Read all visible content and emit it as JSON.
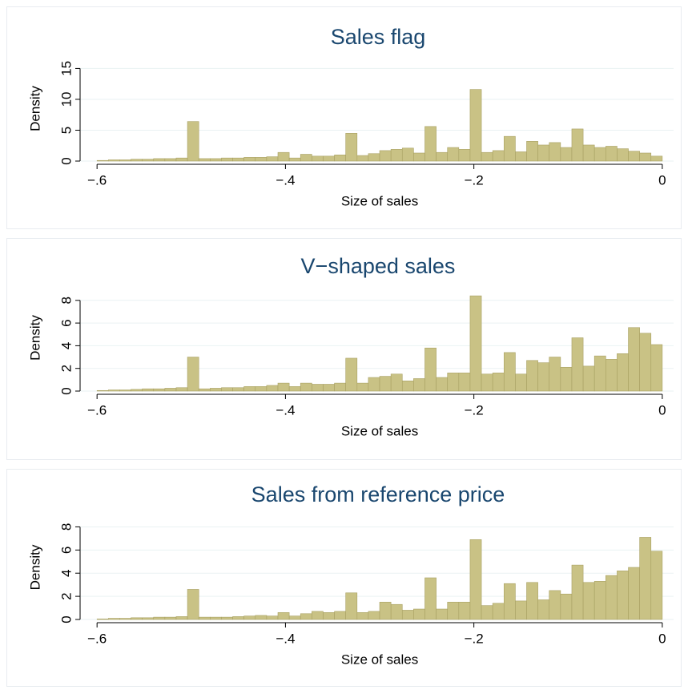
{
  "chart_data": [
    {
      "type": "histogram",
      "title": "Sales flag",
      "ylabel": "Density",
      "xlabel": "Size of sales",
      "bins": [
        -0.6,
        -0.588,
        -0.576,
        -0.564,
        -0.552,
        -0.54,
        -0.528,
        -0.516,
        -0.504,
        -0.492,
        -0.48,
        -0.468,
        -0.456,
        -0.444,
        -0.432,
        -0.42,
        -0.408,
        -0.396,
        -0.384,
        -0.372,
        -0.36,
        -0.348,
        -0.336,
        -0.324,
        -0.312,
        -0.3,
        -0.288,
        -0.276,
        -0.264,
        -0.252,
        -0.24,
        -0.228,
        -0.216,
        -0.204,
        -0.192,
        -0.18,
        -0.168,
        -0.156,
        -0.144,
        -0.132,
        -0.12,
        -0.108,
        -0.096,
        -0.084,
        -0.072,
        -0.06,
        -0.048,
        -0.036,
        -0.024,
        -0.012,
        0
      ],
      "values": [
        0.1,
        0.2,
        0.2,
        0.3,
        0.3,
        0.4,
        0.4,
        0.5,
        6.4,
        0.4,
        0.4,
        0.5,
        0.5,
        0.6,
        0.6,
        0.7,
        1.4,
        0.5,
        1.1,
        0.8,
        0.8,
        1.0,
        4.5,
        0.9,
        1.2,
        1.7,
        1.9,
        2.1,
        1.3,
        5.6,
        1.4,
        2.2,
        1.9,
        11.6,
        1.4,
        1.7,
        4.0,
        1.5,
        3.2,
        2.6,
        3.0,
        2.2,
        5.2,
        2.6,
        2.2,
        2.4,
        2.0,
        1.6,
        1.3,
        0.8
      ],
      "color": "#c9c285",
      "xlim": [
        -0.618,
        0.012
      ],
      "ylim": [
        0,
        17
      ],
      "xticks": [
        {
          "value": -0.6,
          "label": "−.6"
        },
        {
          "value": -0.4,
          "label": "−.4"
        },
        {
          "value": -0.2,
          "label": "−.2"
        },
        0
      ],
      "yticks": [
        0,
        5,
        10,
        15
      ],
      "grid": true
    },
    {
      "type": "histogram",
      "title": "V−shaped sales",
      "ylabel": "Density",
      "xlabel": "Size of sales",
      "bins": [
        -0.6,
        -0.588,
        -0.576,
        -0.564,
        -0.552,
        -0.54,
        -0.528,
        -0.516,
        -0.504,
        -0.492,
        -0.48,
        -0.468,
        -0.456,
        -0.444,
        -0.432,
        -0.42,
        -0.408,
        -0.396,
        -0.384,
        -0.372,
        -0.36,
        -0.348,
        -0.336,
        -0.324,
        -0.312,
        -0.3,
        -0.288,
        -0.276,
        -0.264,
        -0.252,
        -0.24,
        -0.228,
        -0.216,
        -0.204,
        -0.192,
        -0.18,
        -0.168,
        -0.156,
        -0.144,
        -0.132,
        -0.12,
        -0.108,
        -0.096,
        -0.084,
        -0.072,
        -0.06,
        -0.048,
        -0.036,
        -0.024,
        -0.012,
        0
      ],
      "values": [
        0.05,
        0.1,
        0.1,
        0.15,
        0.2,
        0.2,
        0.25,
        0.3,
        3.0,
        0.2,
        0.25,
        0.3,
        0.3,
        0.4,
        0.4,
        0.5,
        0.7,
        0.4,
        0.7,
        0.6,
        0.6,
        0.7,
        2.9,
        0.7,
        1.2,
        1.3,
        1.5,
        0.9,
        1.1,
        3.8,
        1.2,
        1.6,
        1.6,
        8.4,
        1.5,
        1.6,
        3.4,
        1.5,
        2.7,
        2.5,
        3.0,
        2.1,
        4.7,
        2.2,
        3.1,
        2.8,
        3.3,
        5.6,
        5.1,
        4.1
      ],
      "color": "#c9c285",
      "xlim": [
        -0.618,
        0.012
      ],
      "ylim": [
        0,
        9.4
      ],
      "xticks": [
        {
          "value": -0.6,
          "label": "−.6"
        },
        {
          "value": -0.4,
          "label": "−.4"
        },
        {
          "value": -0.2,
          "label": "−.2"
        },
        0
      ],
      "yticks": [
        0,
        2,
        4,
        6,
        8
      ],
      "grid": true
    },
    {
      "type": "histogram",
      "title": "Sales from reference price",
      "ylabel": "Density",
      "xlabel": "Size of sales",
      "bins": [
        -0.6,
        -0.588,
        -0.576,
        -0.564,
        -0.552,
        -0.54,
        -0.528,
        -0.516,
        -0.504,
        -0.492,
        -0.48,
        -0.468,
        -0.456,
        -0.444,
        -0.432,
        -0.42,
        -0.408,
        -0.396,
        -0.384,
        -0.372,
        -0.36,
        -0.348,
        -0.336,
        -0.324,
        -0.312,
        -0.3,
        -0.288,
        -0.276,
        -0.264,
        -0.252,
        -0.24,
        -0.228,
        -0.216,
        -0.204,
        -0.192,
        -0.18,
        -0.168,
        -0.156,
        -0.144,
        -0.132,
        -0.12,
        -0.108,
        -0.096,
        -0.084,
        -0.072,
        -0.06,
        -0.048,
        -0.036,
        -0.024,
        -0.012,
        0
      ],
      "values": [
        0.05,
        0.1,
        0.1,
        0.15,
        0.15,
        0.2,
        0.2,
        0.25,
        2.6,
        0.2,
        0.2,
        0.2,
        0.25,
        0.3,
        0.35,
        0.3,
        0.6,
        0.3,
        0.5,
        0.7,
        0.6,
        0.7,
        2.3,
        0.6,
        0.7,
        1.5,
        1.3,
        0.8,
        0.9,
        3.6,
        0.9,
        1.5,
        1.5,
        6.9,
        1.2,
        1.4,
        3.1,
        1.6,
        3.2,
        1.7,
        2.5,
        2.2,
        4.7,
        3.2,
        3.3,
        3.8,
        4.2,
        4.5,
        7.1,
        5.9
      ],
      "color": "#c9c285",
      "xlim": [
        -0.618,
        0.012
      ],
      "ylim": [
        0,
        9
      ],
      "xticks": [
        {
          "value": -0.6,
          "label": "−.6"
        },
        {
          "value": -0.4,
          "label": "−.4"
        },
        {
          "value": -0.2,
          "label": "−.2"
        },
        0
      ],
      "yticks": [
        0,
        2,
        4,
        6,
        8
      ],
      "grid": true
    }
  ]
}
